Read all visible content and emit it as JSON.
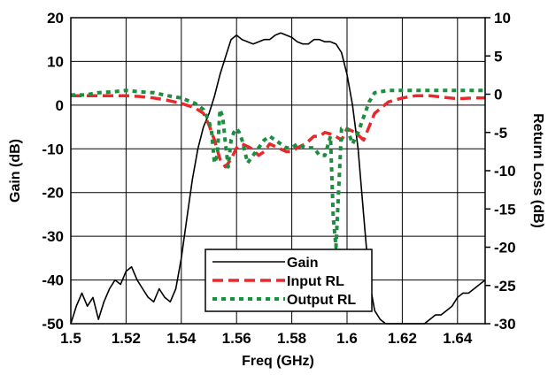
{
  "chart_data": {
    "type": "line",
    "title": "",
    "xlabel": "Freq (GHz)",
    "ylabel_left": "Gain (dB)",
    "ylabel_right": "Return Loss (dB)",
    "xlim": [
      1.5,
      1.65
    ],
    "ylim_left": [
      -50,
      20
    ],
    "ylim_right": [
      -30,
      10
    ],
    "x_ticks": [
      "1.5",
      "1.52",
      "1.54",
      "1.56",
      "1.58",
      "1.6",
      "1.62",
      "1.64"
    ],
    "y_left_ticks": [
      "20",
      "10",
      "0",
      "-10",
      "-20",
      "-30",
      "-40",
      "-50"
    ],
    "y_right_ticks": [
      "10",
      "5",
      "0",
      "-5",
      "-10",
      "-15",
      "-20",
      "-25",
      "-30"
    ],
    "grid": true,
    "legend_position": "bottom-center",
    "series": [
      {
        "name": "Gain",
        "axis": "left",
        "color": "#000000",
        "style": "solid",
        "x": [
          1.5,
          1.502,
          1.504,
          1.506,
          1.508,
          1.51,
          1.512,
          1.514,
          1.516,
          1.518,
          1.52,
          1.522,
          1.524,
          1.526,
          1.528,
          1.53,
          1.532,
          1.534,
          1.536,
          1.538,
          1.54,
          1.542,
          1.544,
          1.546,
          1.548,
          1.55,
          1.552,
          1.554,
          1.556,
          1.558,
          1.56,
          1.562,
          1.564,
          1.566,
          1.568,
          1.57,
          1.572,
          1.574,
          1.576,
          1.578,
          1.58,
          1.582,
          1.584,
          1.586,
          1.588,
          1.59,
          1.592,
          1.594,
          1.596,
          1.598,
          1.6,
          1.602,
          1.604,
          1.606,
          1.608,
          1.61,
          1.612,
          1.614,
          1.616,
          1.618,
          1.62,
          1.622,
          1.624,
          1.626,
          1.628,
          1.63,
          1.632,
          1.634,
          1.636,
          1.638,
          1.64,
          1.642,
          1.644,
          1.646,
          1.648,
          1.65
        ],
        "values": [
          -50,
          -46,
          -43,
          -46,
          -44,
          -49,
          -45,
          -42,
          -40,
          -41,
          -38,
          -37,
          -40,
          -42,
          -44,
          -45,
          -42,
          -44,
          -45,
          -42,
          -35,
          -26,
          -17,
          -10,
          -5,
          -2,
          2,
          7,
          11,
          15,
          16,
          15,
          14.5,
          14,
          14.5,
          15,
          15,
          16,
          16.5,
          16,
          15.5,
          14.5,
          14,
          14,
          15,
          15,
          14.5,
          14.5,
          14,
          12,
          7,
          0,
          -10,
          -25,
          -40,
          -47,
          -49,
          -50,
          -51,
          -52,
          -52,
          -50,
          -50,
          -50,
          -50,
          -49,
          -48,
          -48,
          -47,
          -46,
          -44,
          -43,
          -43,
          -42,
          -41,
          -40
        ]
      },
      {
        "name": "Input RL",
        "axis": "right",
        "color": "#e8282b",
        "style": "dashed",
        "x": [
          1.5,
          1.51,
          1.52,
          1.525,
          1.53,
          1.535,
          1.54,
          1.545,
          1.548,
          1.55,
          1.552,
          1.554,
          1.556,
          1.558,
          1.56,
          1.562,
          1.565,
          1.568,
          1.57,
          1.572,
          1.575,
          1.578,
          1.58,
          1.582,
          1.585,
          1.588,
          1.59,
          1.592,
          1.595,
          1.598,
          1.6,
          1.603,
          1.606,
          1.61,
          1.615,
          1.62,
          1.625,
          1.63,
          1.635,
          1.64,
          1.645,
          1.65
        ],
        "values": [
          -0.2,
          -0.2,
          -0.2,
          -0.3,
          -0.5,
          -0.8,
          -1.2,
          -1.8,
          -2.5,
          -4,
          -6,
          -8.5,
          -9.5,
          -8.5,
          -7,
          -6.5,
          -7,
          -8,
          -7.5,
          -6.5,
          -7,
          -7.5,
          -7.5,
          -7,
          -6.5,
          -5.5,
          -5.5,
          -5,
          -5.3,
          -6,
          -4.5,
          -5,
          -6,
          -2.5,
          -1,
          -0.5,
          -0.2,
          -0.2,
          -0.4,
          -0.6,
          -0.5,
          -0.5
        ]
      },
      {
        "name": "Output RL",
        "axis": "right",
        "color": "#1b8e3f",
        "style": "dotted",
        "x": [
          1.5,
          1.505,
          1.51,
          1.515,
          1.52,
          1.525,
          1.53,
          1.535,
          1.54,
          1.545,
          1.548,
          1.55,
          1.551,
          1.552,
          1.553,
          1.554,
          1.555,
          1.556,
          1.557,
          1.558,
          1.559,
          1.56,
          1.561,
          1.562,
          1.564,
          1.566,
          1.568,
          1.57,
          1.572,
          1.574,
          1.576,
          1.578,
          1.58,
          1.582,
          1.585,
          1.588,
          1.59,
          1.592,
          1.594,
          1.595,
          1.596,
          1.598,
          1.6,
          1.602,
          1.604,
          1.606,
          1.608,
          1.61,
          1.615,
          1.62,
          1.63,
          1.64,
          1.65
        ],
        "values": [
          -0.1,
          -0.1,
          0.2,
          0.3,
          0.5,
          0.3,
          0.2,
          -0.2,
          -0.5,
          -1.2,
          -2,
          -3.5,
          -5,
          -9,
          -8,
          -2,
          -3,
          -6.5,
          -9.5,
          -6,
          -5,
          -4.5,
          -5,
          -6,
          -9,
          -8,
          -7,
          -6,
          -5.5,
          -6,
          -6.5,
          -7,
          -7,
          -6.5,
          -7,
          -7,
          -8,
          -8,
          -5.5,
          -16,
          -20,
          -4.5,
          -4.5,
          -6.5,
          -5,
          -3,
          -1,
          0.2,
          0.5,
          0.5,
          0.5,
          0.5,
          0.5
        ]
      }
    ]
  },
  "colors": {
    "gain": "#000000",
    "input_rl": "#e8282b",
    "output_rl": "#1b8e3f",
    "grid": "#000000"
  }
}
